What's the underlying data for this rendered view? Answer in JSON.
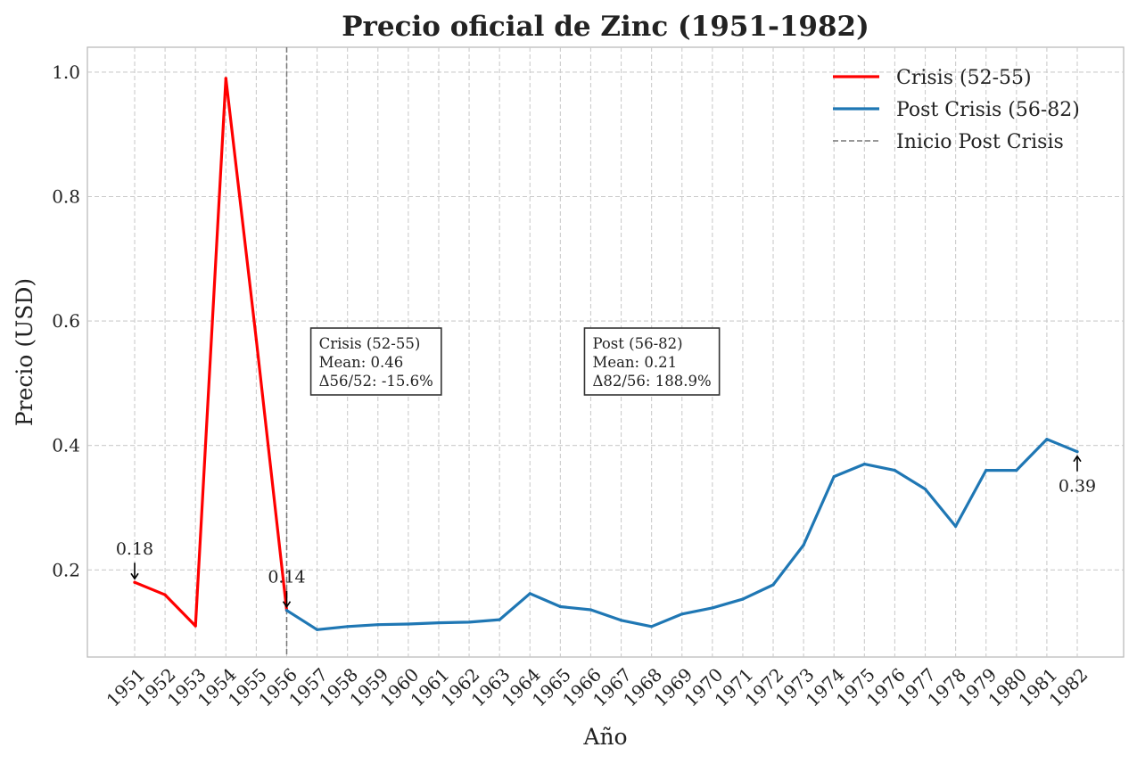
{
  "chart_data": {
    "type": "line",
    "title": "Precio oficial de Zinc (1951-1982)",
    "xlabel": "Año",
    "ylabel": "Precio (USD)",
    "ylim": [
      0.06,
      1.04
    ],
    "yticks": [
      "0.2",
      "0.4",
      "0.6",
      "0.8",
      "1.0"
    ],
    "ytick_values": [
      0.2,
      0.4,
      0.6,
      0.8,
      1.0
    ],
    "grid": true,
    "legend_position": "top-right",
    "categories": [
      "1951",
      "1952",
      "1953",
      "1954",
      "1955",
      "1956",
      "1957",
      "1958",
      "1959",
      "1960",
      "1961",
      "1962",
      "1963",
      "1964",
      "1965",
      "1966",
      "1967",
      "1968",
      "1969",
      "1970",
      "1971",
      "1972",
      "1973",
      "1974",
      "1975",
      "1976",
      "1977",
      "1978",
      "1979",
      "1980",
      "1981",
      "1982"
    ],
    "series": [
      {
        "name": "Crisis (52-55)",
        "color": "#ff0000",
        "x": [
          "1951",
          "1952",
          "1953",
          "1954",
          "1955",
          "1956"
        ],
        "values": [
          0.18,
          0.16,
          0.11,
          0.99,
          0.57,
          0.135
        ]
      },
      {
        "name": "Post Crisis (56-82)",
        "color": "#1f77b4",
        "x": [
          "1956",
          "1957",
          "1958",
          "1959",
          "1960",
          "1961",
          "1962",
          "1963",
          "1964",
          "1965",
          "1966",
          "1967",
          "1968",
          "1969",
          "1970",
          "1971",
          "1972",
          "1973",
          "1974",
          "1975",
          "1976",
          "1977",
          "1978",
          "1979",
          "1980",
          "1981",
          "1982"
        ],
        "values": [
          0.135,
          0.104,
          0.109,
          0.112,
          0.113,
          0.115,
          0.116,
          0.12,
          0.162,
          0.141,
          0.136,
          0.119,
          0.109,
          0.129,
          0.139,
          0.153,
          0.176,
          0.24,
          0.35,
          0.37,
          0.36,
          0.33,
          0.27,
          0.36,
          0.36,
          0.41,
          0.39
        ]
      }
    ],
    "vline": {
      "x": "1956",
      "label": "Inicio Post Crisis",
      "color": "#777777"
    },
    "annotations": [
      {
        "x": "1951",
        "y": 0.18,
        "text": "0.18",
        "dir": "above"
      },
      {
        "x": "1956",
        "y": 0.135,
        "text": "0.14",
        "dir": "above"
      },
      {
        "x": "1982",
        "y": 0.39,
        "text": "0.39",
        "dir": "below"
      }
    ],
    "stat_boxes": [
      {
        "x": "1957",
        "lines": [
          "Crisis (52-55)",
          "Mean: 0.46",
          "Δ56/52: -15.6%"
        ]
      },
      {
        "x": "1966",
        "lines": [
          "Post (56-82)",
          "Mean: 0.21",
          "Δ82/56: 188.9%"
        ]
      }
    ]
  }
}
